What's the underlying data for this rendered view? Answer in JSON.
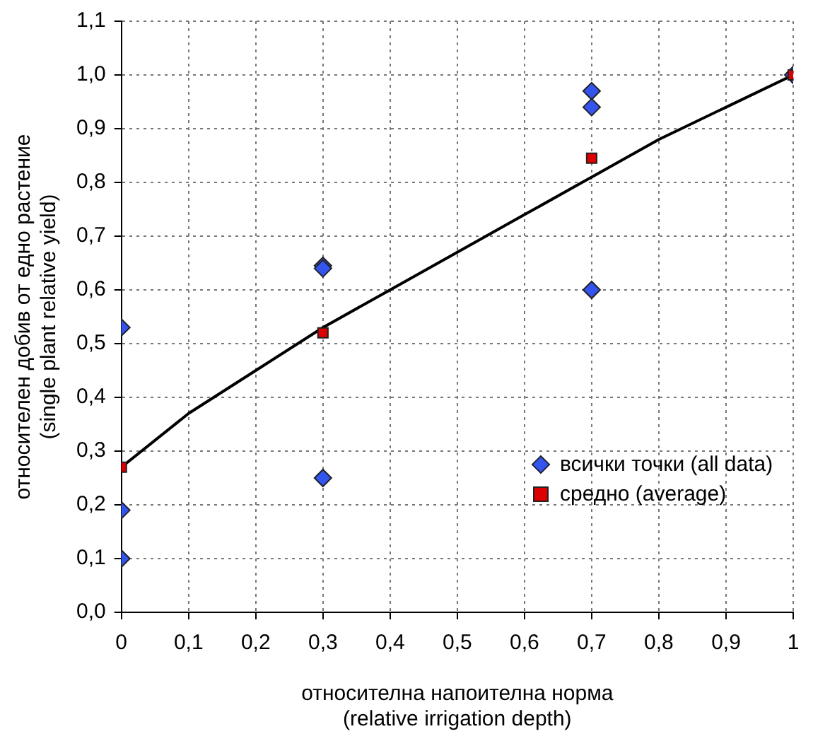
{
  "chart_data": {
    "type": "scatter",
    "xlabel": "относителна напоителна норма\n(relative irrigation depth)",
    "ylabel": "относителен добив от едно растение\n(single plant relative yield)",
    "series": [
      {
        "name": "всички точки (all data)",
        "color": "#3355ee",
        "marker": "diamond",
        "x": [
          0,
          0,
          0,
          0.3,
          0.3,
          0.3,
          0.7,
          0.7,
          0.7,
          1
        ],
        "values": [
          0.53,
          0.19,
          0.1,
          0.645,
          0.64,
          0.25,
          0.97,
          0.94,
          0.6,
          1.0
        ]
      },
      {
        "name": "средно (average)",
        "color": "#dd0000",
        "marker": "square",
        "x": [
          0,
          0.3,
          0.7,
          1
        ],
        "values": [
          0.27,
          0.52,
          0.845,
          1.0
        ]
      },
      {
        "type": "line",
        "color": "#000000",
        "marker": "none",
        "x": [
          0,
          0.1,
          0.2,
          0.3,
          0.4,
          0.5,
          0.6,
          0.7,
          0.8,
          0.9,
          1
        ],
        "values": [
          0.27,
          0.37,
          0.45,
          0.53,
          0.6,
          0.67,
          0.74,
          0.81,
          0.88,
          0.94,
          1.0
        ]
      }
    ],
    "xlim": [
      0,
      1
    ],
    "xticks": [
      {
        "value": 0,
        "label": "0"
      },
      {
        "value": 0.1,
        "label": "0,1"
      },
      {
        "value": 0.2,
        "label": "0,2"
      },
      {
        "value": 0.3,
        "label": "0,3"
      },
      {
        "value": 0.4,
        "label": "0,4"
      },
      {
        "value": 0.5,
        "label": "0,5"
      },
      {
        "value": 0.6,
        "label": "0,6"
      },
      {
        "value": 0.7,
        "label": "0,7"
      },
      {
        "value": 0.8,
        "label": "0,8"
      },
      {
        "value": 0.9,
        "label": "0,9"
      },
      {
        "value": 1,
        "label": "1"
      }
    ],
    "ylim": [
      0,
      1.1
    ],
    "yticks": [
      {
        "value": 0,
        "label": "0,0"
      },
      {
        "value": 0.1,
        "label": "0,1"
      },
      {
        "value": 0.2,
        "label": "0,2"
      },
      {
        "value": 0.3,
        "label": "0,3"
      },
      {
        "value": 0.4,
        "label": "0,4"
      },
      {
        "value": 0.5,
        "label": "0,5"
      },
      {
        "value": 0.6,
        "label": "0,6"
      },
      {
        "value": 0.7,
        "label": "0,7"
      },
      {
        "value": 0.8,
        "label": "0,8"
      },
      {
        "value": 0.9,
        "label": "0,9"
      },
      {
        "value": 1,
        "label": "1,0"
      },
      {
        "value": 1.1,
        "label": "1,1"
      }
    ],
    "grid": true,
    "legend": "bottom right",
    "line_style": "solid"
  }
}
